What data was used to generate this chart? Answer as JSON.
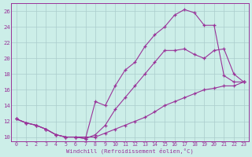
{
  "xlabel": "Windchill (Refroidissement éolien,°C)",
  "bg_color": "#cceee8",
  "grid_color": "#aacccc",
  "line_color": "#993399",
  "xlim": [
    -0.5,
    23.5
  ],
  "ylim": [
    9.5,
    27
  ],
  "yticks": [
    10,
    12,
    14,
    16,
    18,
    20,
    22,
    24,
    26
  ],
  "xticks": [
    0,
    1,
    2,
    3,
    4,
    5,
    6,
    7,
    8,
    9,
    10,
    11,
    12,
    13,
    14,
    15,
    16,
    17,
    18,
    19,
    20,
    21,
    22,
    23
  ],
  "s1_x": [
    0,
    1,
    2,
    3,
    4,
    5,
    6,
    7,
    8,
    9,
    10,
    11,
    12,
    13,
    14,
    15,
    16,
    17,
    18,
    19,
    20,
    21,
    22,
    23
  ],
  "s1_y": [
    12.3,
    11.8,
    11.5,
    11.0,
    10.3,
    10.0,
    10.0,
    10.0,
    10.0,
    10.5,
    11.0,
    11.5,
    12.0,
    12.5,
    13.2,
    14.0,
    14.5,
    15.0,
    15.5,
    16.0,
    16.2,
    16.5,
    16.5,
    17.0
  ],
  "s2_x": [
    0,
    1,
    2,
    3,
    4,
    5,
    6,
    7,
    8,
    9,
    10,
    11,
    12,
    13,
    14,
    15,
    16,
    17,
    18,
    19,
    20,
    21,
    22,
    23
  ],
  "s2_y": [
    12.3,
    11.8,
    11.5,
    11.0,
    10.3,
    10.0,
    10.0,
    9.8,
    10.3,
    11.5,
    13.5,
    15.0,
    16.5,
    18.0,
    19.5,
    21.0,
    21.0,
    21.2,
    20.5,
    20.0,
    21.0,
    21.2,
    18.0,
    17.0
  ],
  "s3_x": [
    0,
    1,
    2,
    3,
    4,
    5,
    6,
    7,
    8,
    9,
    10,
    11,
    12,
    13,
    14,
    15,
    16,
    17,
    18,
    19,
    20,
    21,
    22,
    23
  ],
  "s3_y": [
    12.3,
    11.8,
    11.5,
    11.0,
    10.3,
    10.0,
    10.0,
    9.8,
    14.5,
    14.0,
    16.5,
    18.5,
    19.5,
    21.5,
    23.0,
    24.0,
    25.5,
    26.2,
    25.8,
    24.2,
    24.2,
    17.8,
    17.0,
    17.0
  ]
}
